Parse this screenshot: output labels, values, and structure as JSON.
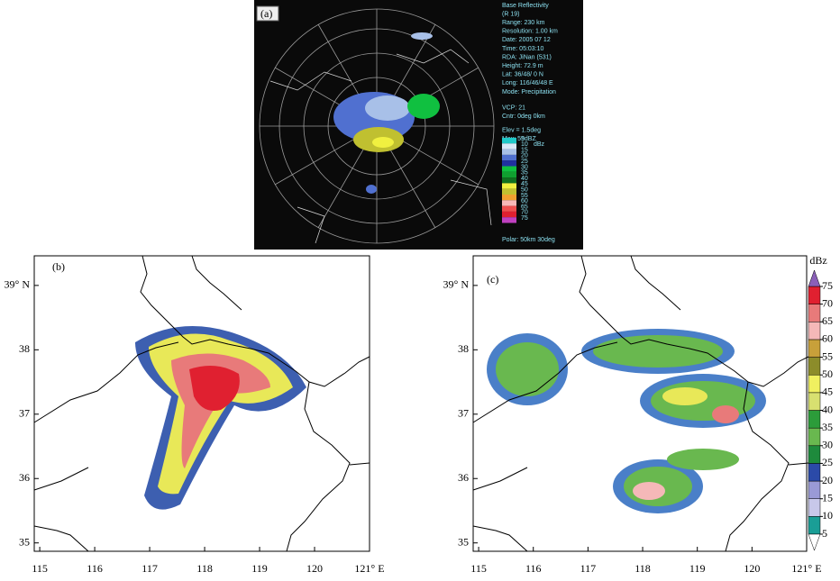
{
  "panel_a": {
    "label": "(a)",
    "info": [
      "Base Reflectivity",
      "(R 19)",
      "Range: 230 km",
      "Resolution: 1.00 km",
      "Date: 2005 07 12",
      "Time: 05:03:10",
      "RDA: JiNan (531)",
      "Height: 72.9 m",
      "Lat: 36/48/ 0 N",
      "Long: 116/46/48 E",
      "Mode: Precipitation",
      "VCP: 21",
      "Cntr:   0deg   0km",
      "Elev = 1.5deg",
      "Max: 59dBZ"
    ],
    "legend_unit": "dBz",
    "legend_values": [
      5,
      10,
      15,
      20,
      25,
      30,
      35,
      40,
      45,
      50,
      55,
      60,
      65,
      70,
      75
    ],
    "legend_colors": [
      "#20c8c8",
      "#d8e8f8",
      "#a8c0e8",
      "#5070d0",
      "#2030a0",
      "#10c040",
      "#10a030",
      "#107020",
      "#f0f040",
      "#c0c030",
      "#f0a030",
      "#f8b8b8",
      "#f05050",
      "#e02030",
      "#c040c0"
    ],
    "polar": "Polar:  50km 30deg"
  },
  "map_axes": {
    "xlim": [
      114.9,
      121
    ],
    "ylim": [
      34.87,
      39.46
    ],
    "xticks": [
      115,
      116,
      117,
      118,
      119,
      120,
      {
        "value": 121,
        "label": "121° E"
      }
    ],
    "yticks": [
      {
        "value": 39,
        "label": "39° N"
      },
      38,
      37,
      36,
      35
    ]
  },
  "panel_b": {
    "label": "(b)"
  },
  "panel_c": {
    "label": "(c)"
  },
  "colorbar": {
    "unit": "dBz",
    "ticks": [
      5,
      10,
      15,
      20,
      25,
      30,
      35,
      40,
      45,
      50,
      55,
      60,
      65,
      70,
      75
    ],
    "colors": [
      "#1a9e96",
      "#c8c8ea",
      "#9a9ad6",
      "#2b4aa8",
      "#1e8a3c",
      "#69b84f",
      "#2c9c3a",
      "#d8e070",
      "#f0f060",
      "#8c8c2a",
      "#c8a03a",
      "#f5b8b8",
      "#e87a7a",
      "#e02030"
    ],
    "over_color": "#8a60b8",
    "under_color": "#ffffff"
  }
}
